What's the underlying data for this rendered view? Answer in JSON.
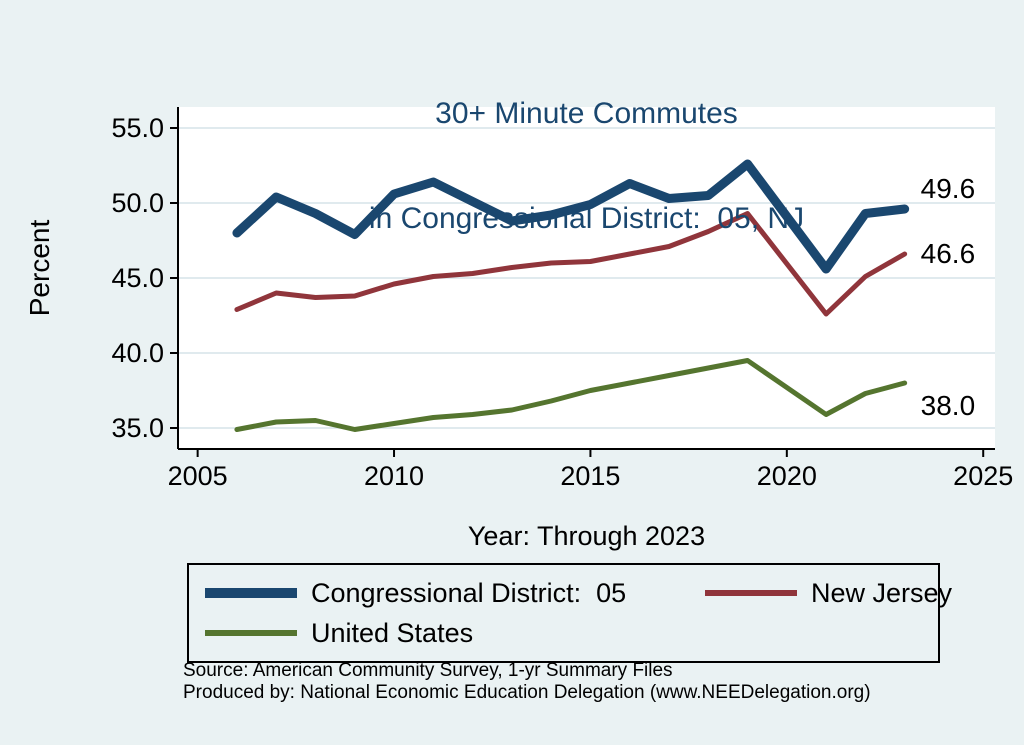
{
  "title": {
    "line1": "30+ Minute Commutes",
    "line2": "in Congressional District:  05, NJ"
  },
  "axes": {
    "ylabel": "Percent",
    "xlabel": "Year: Through 2023"
  },
  "chart_data": {
    "type": "line",
    "x": [
      2006,
      2007,
      2008,
      2009,
      2010,
      2011,
      2012,
      2013,
      2014,
      2015,
      2016,
      2017,
      2018,
      2019,
      2021,
      2022,
      2023
    ],
    "series": [
      {
        "name": "Congressional District:  05",
        "color": "#1a476f",
        "stroke_width": 9,
        "values": [
          48.0,
          50.4,
          49.3,
          47.9,
          50.6,
          51.4,
          50.1,
          48.8,
          49.2,
          49.9,
          51.3,
          50.3,
          50.5,
          52.6,
          45.6,
          49.3,
          49.6
        ],
        "end_label": "49.6"
      },
      {
        "name": "New Jersey",
        "color": "#90353b",
        "stroke_width": 5,
        "values": [
          42.9,
          44.0,
          43.7,
          43.8,
          44.6,
          45.1,
          45.3,
          45.7,
          46.0,
          46.1,
          46.6,
          47.1,
          48.1,
          49.3,
          42.6,
          45.1,
          46.6
        ],
        "end_label": "46.6"
      },
      {
        "name": "United States",
        "color": "#55752f",
        "stroke_width": 5,
        "values": [
          34.9,
          35.4,
          35.5,
          34.9,
          35.3,
          35.7,
          35.9,
          36.2,
          36.8,
          37.5,
          38.0,
          38.5,
          39.0,
          39.5,
          35.9,
          37.3,
          38.0
        ],
        "end_label": "38.0"
      }
    ],
    "xlim": [
      2004.5,
      2025.3
    ],
    "ylim": [
      33.6,
      56.4
    ],
    "yticks": [
      35,
      40,
      45,
      50,
      55
    ],
    "ytick_labels": [
      "35.0",
      "40.0",
      "45.0",
      "50.0",
      "55.0"
    ],
    "xticks": [
      2005,
      2010,
      2015,
      2020,
      2025
    ],
    "xtick_labels": [
      "2005",
      "2010",
      "2015",
      "2020",
      "2025"
    ],
    "grid": "horizontal",
    "legend_position": "bottom"
  },
  "footer": {
    "source": "Source: American Community Survey, 1-yr Summary Files",
    "produced": "Produced by: National Economic Education Delegation (www.NEEDelegation.org)"
  },
  "colors": {
    "background": "#eaf2f3",
    "plot_background": "#ffffff",
    "gridline": "#d6e4e9",
    "axis": "#000000",
    "title": "#1a476f",
    "text": "#000000"
  }
}
